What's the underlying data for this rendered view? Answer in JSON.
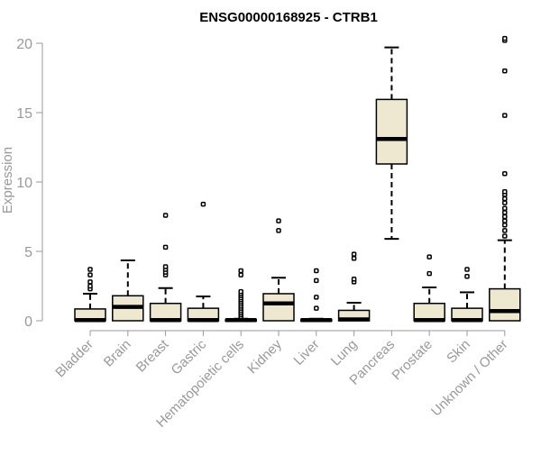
{
  "chart_data": {
    "type": "box",
    "title": "ENSG00000168925 - CTRB1",
    "xlabel": "",
    "ylabel": "Expression",
    "ylim": [
      -0.5,
      20.5
    ],
    "yticks": [
      0,
      5,
      10,
      15,
      20
    ],
    "box_fill": "#EFE8D0",
    "categories": [
      "Bladder",
      "Brain",
      "Breast",
      "Gastric",
      "Hematopoietic cells",
      "Kidney",
      "Liver",
      "Lung",
      "Pancreas",
      "Prostate",
      "Skin",
      "Unknown / Other"
    ],
    "boxes": [
      {
        "category": "Bladder",
        "q1": 0.0,
        "median": 0.05,
        "q3": 0.85,
        "whisker_low": 0.0,
        "whisker_high": 1.95,
        "outliers": [
          2.3,
          2.5,
          2.8,
          3.3,
          3.7
        ]
      },
      {
        "category": "Brain",
        "q1": 0.0,
        "median": 1.0,
        "q3": 1.8,
        "whisker_low": 0.0,
        "whisker_high": 4.35,
        "outliers": []
      },
      {
        "category": "Breast",
        "q1": 0.0,
        "median": 0.05,
        "q3": 1.25,
        "whisker_low": 0.0,
        "whisker_high": 2.35,
        "outliers": [
          3.3,
          3.5,
          3.7,
          3.9,
          5.3,
          7.6
        ]
      },
      {
        "category": "Gastric",
        "q1": 0.0,
        "median": 0.05,
        "q3": 0.9,
        "whisker_low": 0.0,
        "whisker_high": 1.75,
        "outliers": [
          8.4
        ]
      },
      {
        "category": "Hematopoietic cells",
        "q1": 0.0,
        "median": 0.05,
        "q3": 0.1,
        "whisker_low": 0.0,
        "whisker_high": 0.15,
        "outliers": [
          0.3,
          0.45,
          0.6,
          0.75,
          0.9,
          1.05,
          1.2,
          1.35,
          1.5,
          1.65,
          1.8,
          1.95,
          2.1,
          3.3,
          3.6
        ]
      },
      {
        "category": "Kidney",
        "q1": 0.0,
        "median": 1.25,
        "q3": 1.95,
        "whisker_low": 0.0,
        "whisker_high": 3.1,
        "outliers": [
          6.5,
          7.2
        ]
      },
      {
        "category": "Liver",
        "q1": 0.0,
        "median": 0.05,
        "q3": 0.1,
        "whisker_low": 0.0,
        "whisker_high": 0.15,
        "outliers": [
          0.9,
          1.7,
          2.9,
          3.6
        ]
      },
      {
        "category": "Lung",
        "q1": 0.0,
        "median": 0.1,
        "q3": 0.75,
        "whisker_low": 0.0,
        "whisker_high": 1.3,
        "outliers": [
          2.8,
          3.0,
          4.5,
          4.8
        ]
      },
      {
        "category": "Pancreas",
        "q1": 11.3,
        "median": 13.1,
        "q3": 15.95,
        "whisker_low": 5.9,
        "whisker_high": 19.7,
        "outliers": []
      },
      {
        "category": "Prostate",
        "q1": 0.0,
        "median": 0.05,
        "q3": 1.25,
        "whisker_low": 0.0,
        "whisker_high": 2.4,
        "outliers": [
          3.4,
          4.6
        ]
      },
      {
        "category": "Skin",
        "q1": 0.0,
        "median": 0.05,
        "q3": 0.9,
        "whisker_low": 0.0,
        "whisker_high": 2.05,
        "outliers": [
          3.2,
          3.7
        ]
      },
      {
        "category": "Unknown / Other",
        "q1": 0.0,
        "median": 0.7,
        "q3": 2.3,
        "whisker_low": 0.0,
        "whisker_high": 5.8,
        "outliers": [
          6.1,
          6.5,
          6.9,
          7.2,
          7.5,
          7.8,
          8.1,
          8.5,
          8.8,
          9.1,
          9.3,
          10.6,
          14.8,
          18.0,
          20.2,
          20.35
        ]
      }
    ]
  }
}
